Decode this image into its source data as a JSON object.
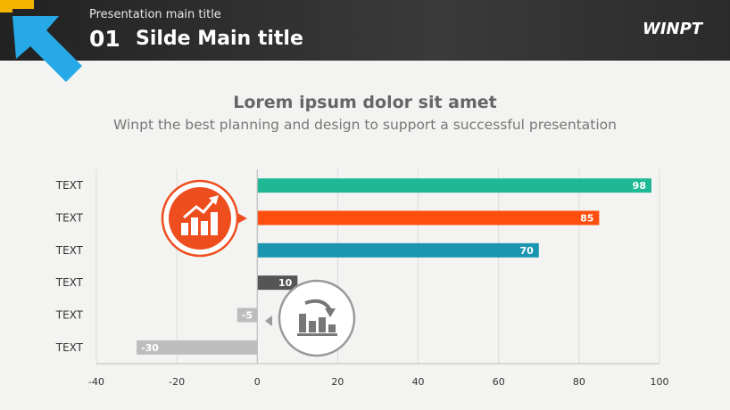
{
  "header": {
    "subtitle": "Presentation main title",
    "number": "01",
    "title": "Silde Main title",
    "logo": "WINPT"
  },
  "headline": "Lorem ipsum dolor sit amet",
  "subline": "Winpt the best planning and design to support a successful presentation",
  "icons": [
    "chart-up-icon",
    "chart-down-icon"
  ],
  "chart_data": {
    "type": "bar",
    "orientation": "horizontal",
    "categories": [
      "TEXT",
      "TEXT",
      "TEXT",
      "TEXT",
      "TEXT",
      "TEXT"
    ],
    "values": [
      98,
      85,
      70,
      10,
      -5,
      -30
    ],
    "data_labels": [
      "98",
      "85",
      "70",
      "10",
      "-5",
      "-30"
    ],
    "colors": [
      "#1fb894",
      "#ff4e0d",
      "#1c95b0",
      "#555555",
      "#bdbdbd",
      "#bdbdbd"
    ],
    "xlim": [
      -40,
      100
    ],
    "x_ticks": [
      -40,
      -20,
      0,
      20,
      40,
      60,
      80,
      100
    ],
    "grid": true
  }
}
